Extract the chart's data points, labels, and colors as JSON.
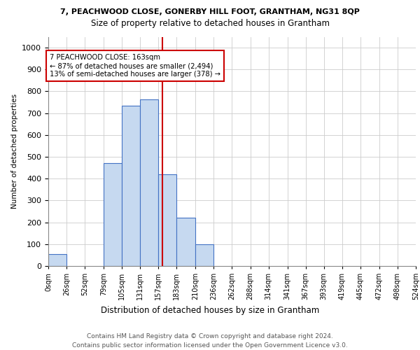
{
  "title1": "7, PEACHWOOD CLOSE, GONERBY HILL FOOT, GRANTHAM, NG31 8QP",
  "title2": "Size of property relative to detached houses in Grantham",
  "xlabel": "Distribution of detached houses by size in Grantham",
  "ylabel": "Number of detached properties",
  "bin_edges": [
    0,
    26,
    52,
    79,
    105,
    131,
    157,
    183,
    210,
    236,
    262,
    288,
    314,
    341,
    367,
    393,
    419,
    445,
    472,
    498,
    524
  ],
  "bar_heights": [
    55,
    0,
    0,
    470,
    735,
    762,
    420,
    220,
    100,
    0,
    0,
    0,
    0,
    0,
    0,
    0,
    0,
    0,
    0,
    0
  ],
  "bar_color": "#c6d9f0",
  "bar_edge_color": "#4472c4",
  "vline_color": "#cc0000",
  "vline_x": 163,
  "annotation_line1": "7 PEACHWOOD CLOSE: 163sqm",
  "annotation_line2": "← 87% of detached houses are smaller (2,494)",
  "annotation_line3": "13% of semi-detached houses are larger (378) →",
  "annotation_box_color": "#cc0000",
  "ylim": [
    0,
    1050
  ],
  "yticks": [
    0,
    100,
    200,
    300,
    400,
    500,
    600,
    700,
    800,
    900,
    1000
  ],
  "footer_line1": "Contains HM Land Registry data © Crown copyright and database right 2024.",
  "footer_line2": "Contains public sector information licensed under the Open Government Licence v3.0.",
  "tick_labels": [
    "0sqm",
    "26sqm",
    "52sqm",
    "79sqm",
    "105sqm",
    "131sqm",
    "157sqm",
    "183sqm",
    "210sqm",
    "236sqm",
    "262sqm",
    "288sqm",
    "314sqm",
    "341sqm",
    "367sqm",
    "393sqm",
    "419sqm",
    "445sqm",
    "472sqm",
    "498sqm",
    "524sqm"
  ]
}
